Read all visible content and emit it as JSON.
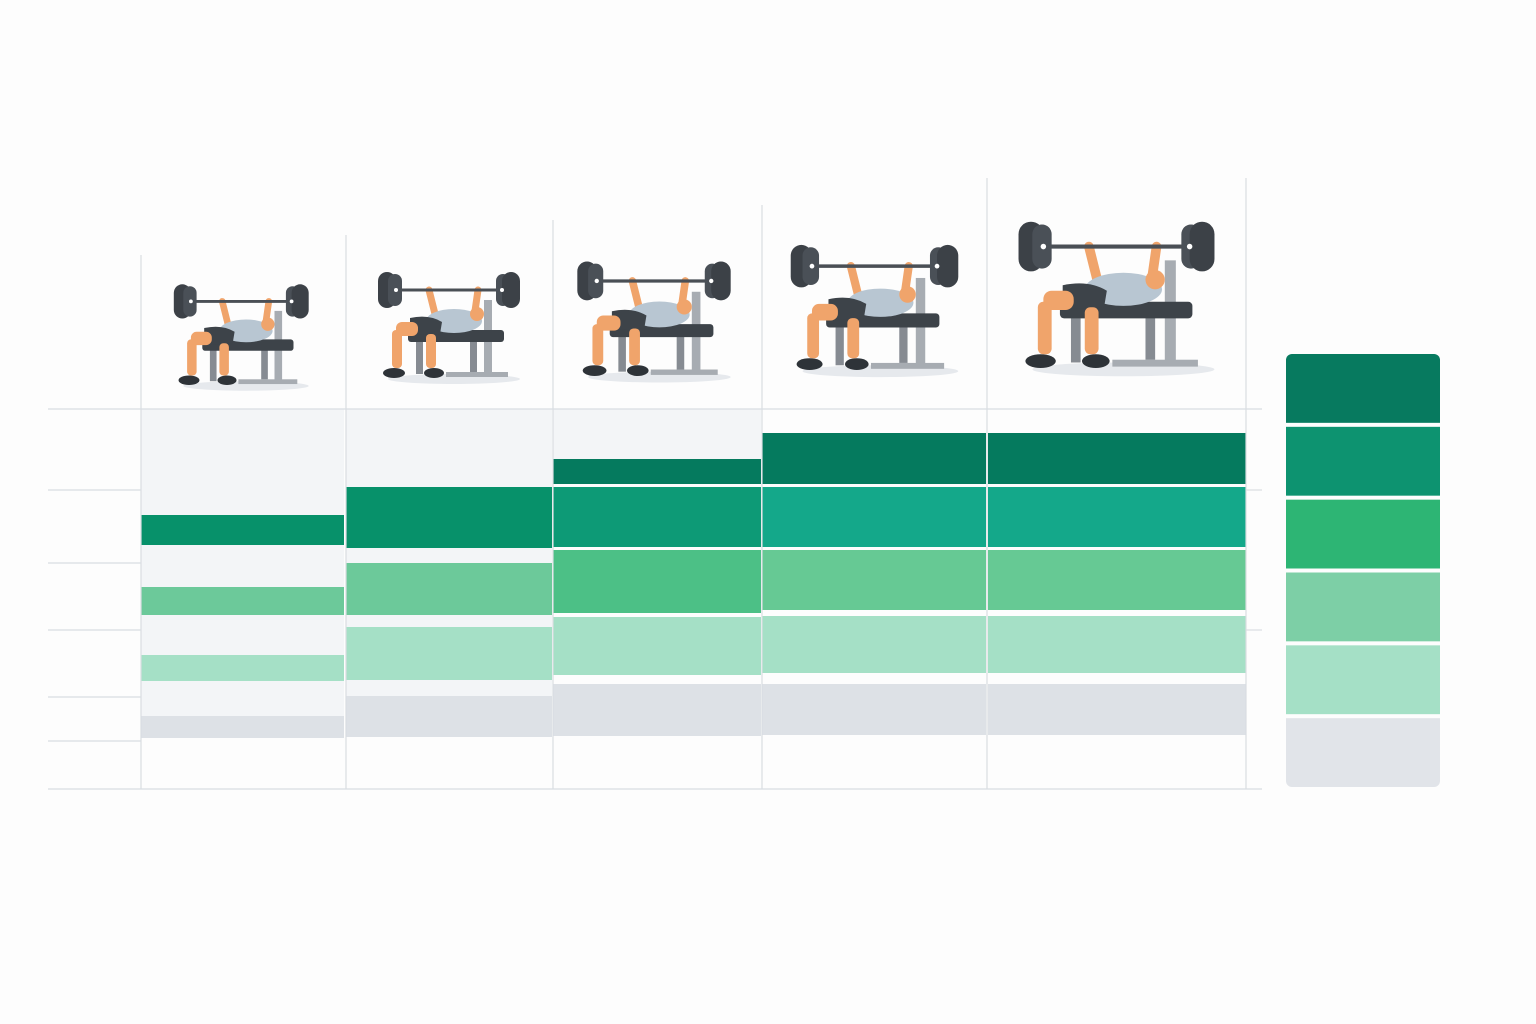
{
  "legend": {
    "colors": [
      "#077a5f",
      "#0d9370",
      "#2db574",
      "#7dcfa6",
      "#a5e0c6",
      "#e1e4e9"
    ]
  }
}
